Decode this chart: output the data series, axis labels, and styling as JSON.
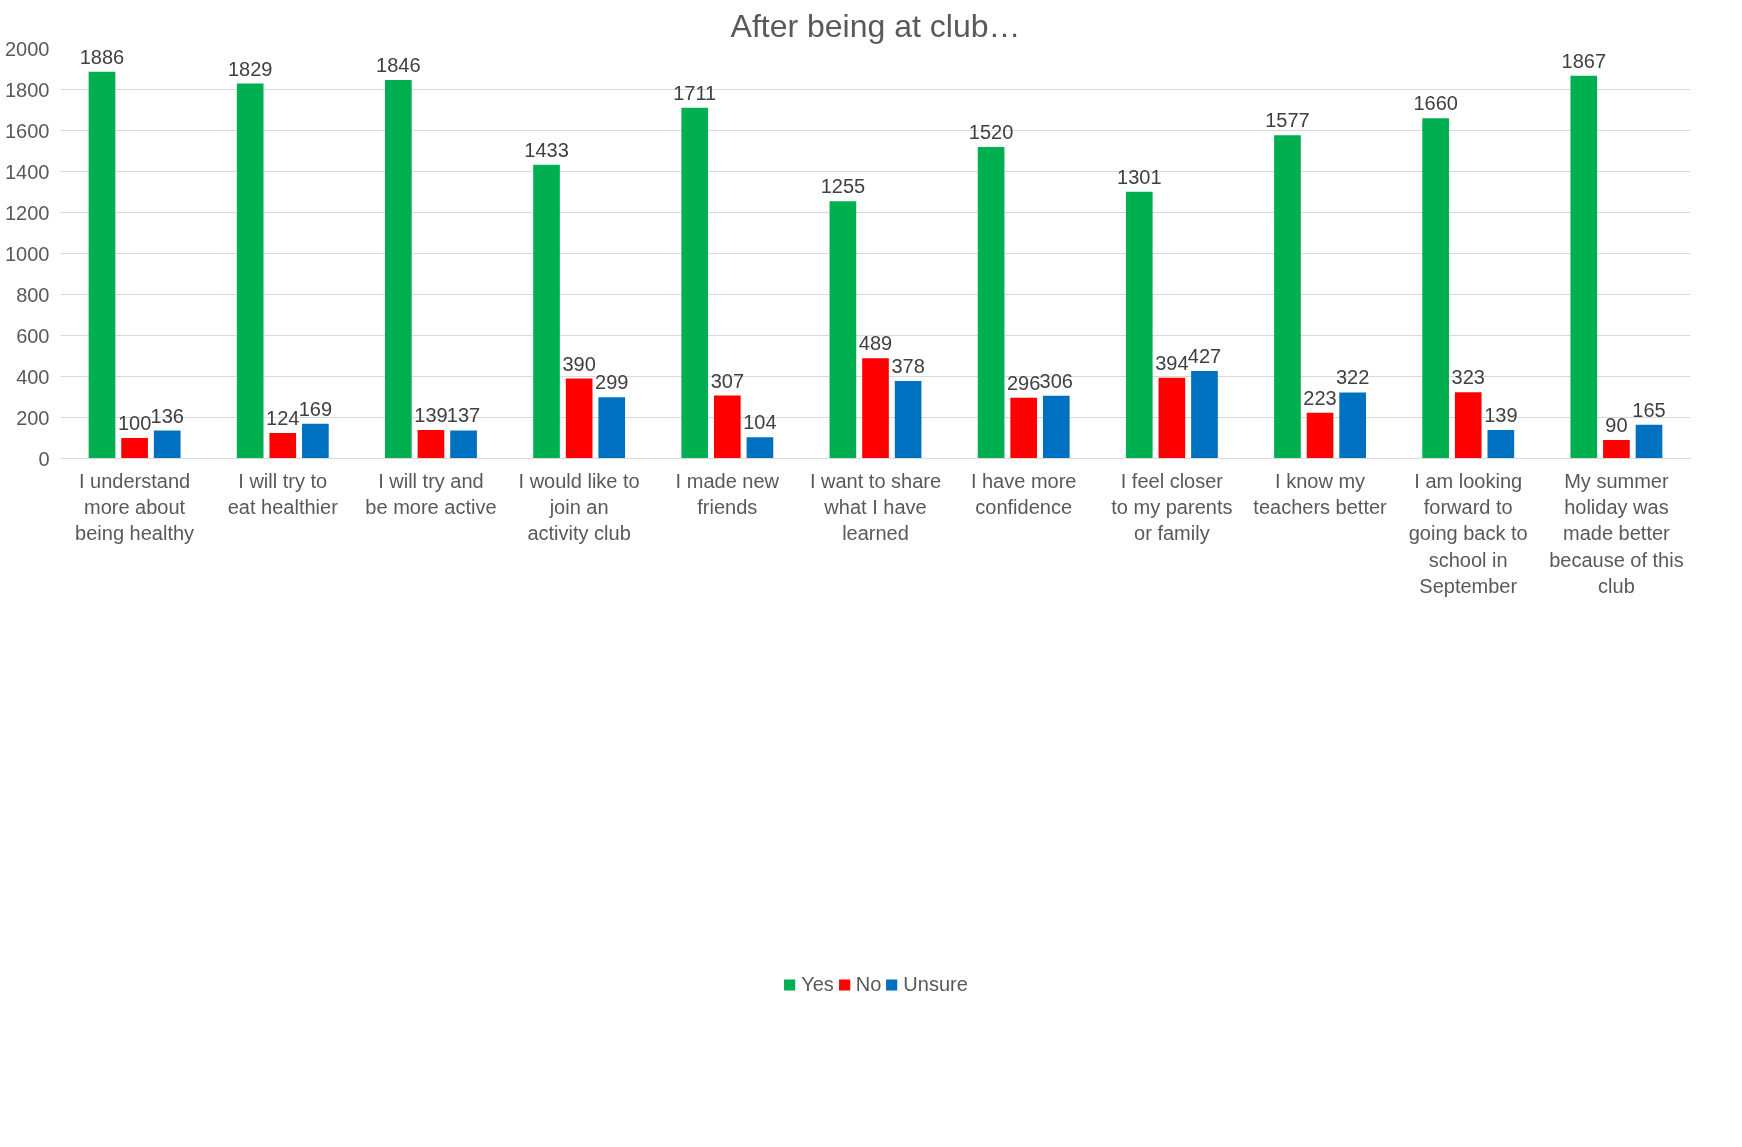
{
  "chart_data": {
    "type": "bar",
    "title": "After being at club…",
    "categories": [
      "I understand more about being healthy",
      "I will try to eat healthier",
      "I will try and be more active",
      "I would like to join an activity club",
      "I made new friends",
      "I want to share what I have learned",
      "I have more confidence",
      "I feel closer to my parents or family",
      "I know my teachers better",
      "I am looking forward to going back to school in September",
      "My summer holiday was made better because of this club"
    ],
    "series": [
      {
        "name": "Yes",
        "color": "#00b050",
        "values": [
          1886,
          1829,
          1846,
          1433,
          1711,
          1255,
          1520,
          1301,
          1577,
          1660,
          1867
        ]
      },
      {
        "name": "No",
        "color": "#ff0000",
        "values": [
          100,
          124,
          139,
          390,
          307,
          489,
          296,
          394,
          223,
          323,
          90
        ]
      },
      {
        "name": "Unsure",
        "color": "#0070c0",
        "values": [
          136,
          169,
          137,
          299,
          104,
          378,
          306,
          427,
          322,
          139,
          165
        ]
      }
    ],
    "ylim": [
      0,
      2000
    ],
    "yticks": [
      0,
      200,
      400,
      600,
      800,
      1000,
      1200,
      1400,
      1600,
      1800,
      2000
    ],
    "grid": "y",
    "legend": "bottom",
    "data_labels": true
  }
}
